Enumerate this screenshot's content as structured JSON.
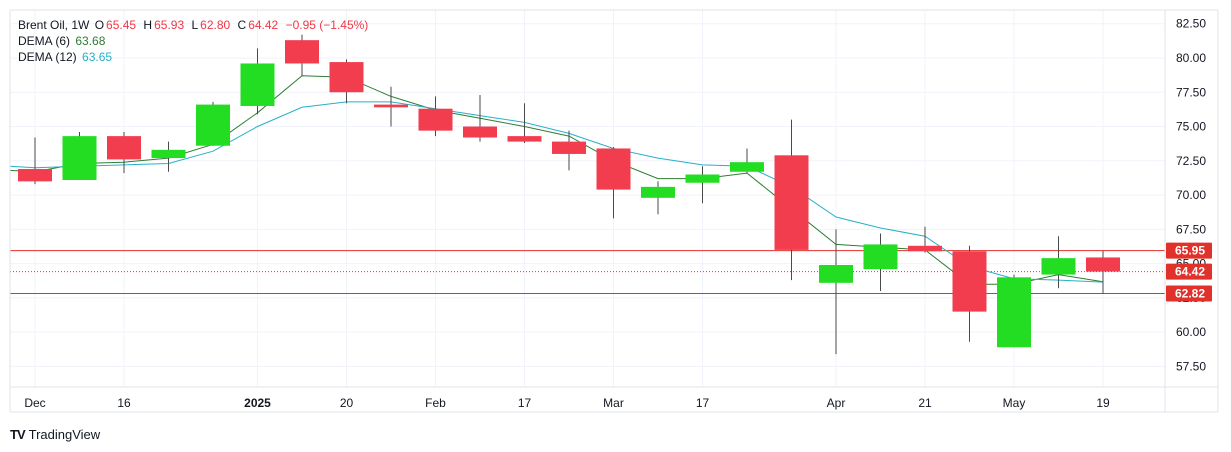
{
  "legend": {
    "symbol": "Brent Oil, 1W",
    "o_label": "O",
    "o": "65.45",
    "h_label": "H",
    "h": "65.93",
    "l_label": "L",
    "l": "62.80",
    "c_label": "C",
    "c": "64.42",
    "change": "−0.95 (−1.45%)",
    "dema6_label": "DEMA (6)",
    "dema6_value": "63.68",
    "dema12_label": "DEMA (12)",
    "dema12_value": "63.65"
  },
  "branding": {
    "name": "TradingView",
    "logo": "TV"
  },
  "colors": {
    "up": "#22dd22",
    "down": "#f23d4f",
    "wick": "#4a4a4a",
    "dema6": "#2e7d32",
    "dema12": "#26b0c9",
    "level_line": "#e0312b",
    "grid": "#f0f3fa",
    "axis_text": "#131722"
  },
  "chart_data": {
    "type": "candlestick",
    "timeframe": "1W",
    "ylim": [
      56,
      83.5
    ],
    "y_ticks": [
      57.5,
      60,
      62.5,
      65,
      67.5,
      70,
      72.5,
      75,
      77.5,
      80,
      82.5
    ],
    "x_ticks": [
      {
        "label": "Dec",
        "index": 0,
        "bold": false
      },
      {
        "label": "16",
        "index": 2,
        "bold": false
      },
      {
        "label": "2025",
        "index": 5,
        "bold": true
      },
      {
        "label": "20",
        "index": 7,
        "bold": false
      },
      {
        "label": "Feb",
        "index": 9,
        "bold": false
      },
      {
        "label": "17",
        "index": 11,
        "bold": false
      },
      {
        "label": "Mar",
        "index": 13,
        "bold": false
      },
      {
        "label": "17",
        "index": 15,
        "bold": false
      },
      {
        "label": "Apr",
        "index": 18,
        "bold": false
      },
      {
        "label": "21",
        "index": 20,
        "bold": false
      },
      {
        "label": "May",
        "index": 22,
        "bold": false
      },
      {
        "label": "19",
        "index": 24,
        "bold": false
      }
    ],
    "candles": [
      {
        "o": 71.9,
        "h": 74.2,
        "l": 70.8,
        "c": 71.0
      },
      {
        "o": 71.1,
        "h": 74.6,
        "l": 71.1,
        "c": 74.3
      },
      {
        "o": 74.3,
        "h": 74.6,
        "l": 71.6,
        "c": 72.6
      },
      {
        "o": 72.7,
        "h": 73.9,
        "l": 71.7,
        "c": 73.3
      },
      {
        "o": 73.6,
        "h": 76.8,
        "l": 73.6,
        "c": 76.6
      },
      {
        "o": 76.5,
        "h": 80.7,
        "l": 75.9,
        "c": 79.6
      },
      {
        "o": 81.3,
        "h": 81.7,
        "l": 78.7,
        "c": 79.6
      },
      {
        "o": 79.7,
        "h": 79.9,
        "l": 76.7,
        "c": 77.5
      },
      {
        "o": 76.6,
        "h": 77.9,
        "l": 75.0,
        "c": 76.4
      },
      {
        "o": 76.3,
        "h": 77.2,
        "l": 74.3,
        "c": 74.7
      },
      {
        "o": 75.0,
        "h": 77.3,
        "l": 73.9,
        "c": 74.2
      },
      {
        "o": 74.3,
        "h": 76.7,
        "l": 73.8,
        "c": 73.9
      },
      {
        "o": 73.9,
        "h": 74.7,
        "l": 71.8,
        "c": 73.0
      },
      {
        "o": 73.4,
        "h": 73.5,
        "l": 68.3,
        "c": 70.4
      },
      {
        "o": 69.8,
        "h": 71.0,
        "l": 68.6,
        "c": 70.6
      },
      {
        "o": 70.9,
        "h": 72.1,
        "l": 69.4,
        "c": 71.5
      },
      {
        "o": 71.7,
        "h": 73.4,
        "l": 71.6,
        "c": 72.4
      },
      {
        "o": 72.9,
        "h": 75.5,
        "l": 63.8,
        "c": 66.0
      },
      {
        "o": 63.6,
        "h": 67.5,
        "l": 58.4,
        "c": 64.9
      },
      {
        "o": 64.6,
        "h": 67.2,
        "l": 63.0,
        "c": 66.4
      },
      {
        "o": 66.3,
        "h": 67.7,
        "l": 65.8,
        "c": 65.9
      },
      {
        "o": 65.9,
        "h": 66.3,
        "l": 59.3,
        "c": 61.5
      },
      {
        "o": 58.9,
        "h": 64.2,
        "l": 58.9,
        "c": 64.0
      },
      {
        "o": 64.2,
        "h": 67.0,
        "l": 63.2,
        "c": 65.4
      },
      {
        "o": 65.45,
        "h": 65.93,
        "l": 62.8,
        "c": 64.42
      }
    ],
    "series": [
      {
        "name": "DEMA (6)",
        "values": [
          71.7,
          72.3,
          72.4,
          72.7,
          73.7,
          76.0,
          78.7,
          78.6,
          77.2,
          76.2,
          75.6,
          75.0,
          74.3,
          72.5,
          71.2,
          71.2,
          71.6,
          69.0,
          66.4,
          66.2,
          66.0,
          63.5,
          63.5,
          64.2,
          63.68
        ]
      },
      {
        "name": "DEMA (12)",
        "values": [
          72.0,
          72.1,
          72.2,
          72.3,
          73.2,
          75.0,
          76.4,
          76.8,
          76.8,
          76.3,
          75.8,
          75.3,
          74.5,
          73.4,
          72.7,
          72.2,
          72.1,
          70.6,
          68.4,
          67.6,
          67.0,
          64.8,
          63.9,
          63.8,
          63.65
        ]
      }
    ],
    "price_levels": [
      {
        "label": "65.95",
        "value": 65.95
      },
      {
        "label": "62.82",
        "value": 62.82
      }
    ],
    "last_price": {
      "label": "64.42",
      "value": 64.42
    }
  }
}
